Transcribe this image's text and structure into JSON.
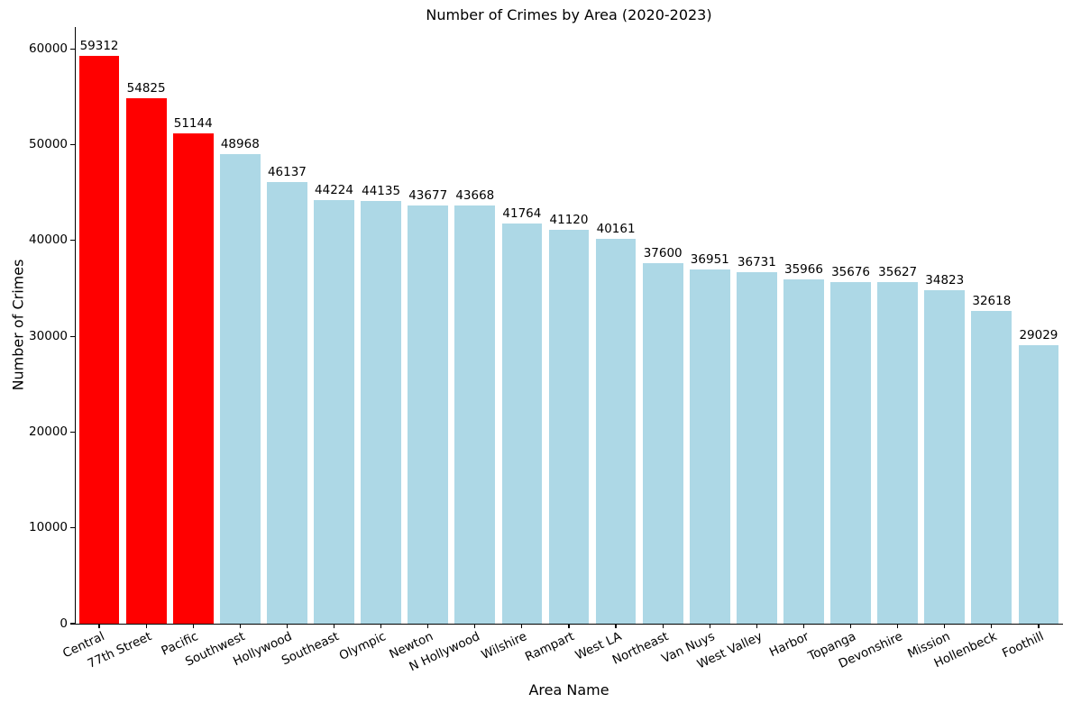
{
  "chart_data": {
    "type": "bar",
    "title": "Number of Crimes by Area (2020-2023)",
    "xlabel": "Area Name",
    "ylabel": "Number of Crimes",
    "categories": [
      "Central",
      "77th Street",
      "Pacific",
      "Southwest",
      "Hollywood",
      "Southeast",
      "Olympic",
      "Newton",
      "N Hollywood",
      "Wilshire",
      "Rampart",
      "West LA",
      "Northeast",
      "Van Nuys",
      "West Valley",
      "Harbor",
      "Topanga",
      "Devonshire",
      "Mission",
      "Hollenbeck",
      "Foothill"
    ],
    "values": [
      59312,
      54825,
      51144,
      48968,
      46137,
      44224,
      44135,
      43677,
      43668,
      41764,
      41120,
      40161,
      37600,
      36951,
      36731,
      35966,
      35676,
      35627,
      34823,
      32618,
      29029
    ],
    "bar_colors": [
      "#ff0000",
      "#ff0000",
      "#ff0000",
      "#add8e6",
      "#add8e6",
      "#add8e6",
      "#add8e6",
      "#add8e6",
      "#add8e6",
      "#add8e6",
      "#add8e6",
      "#add8e6",
      "#add8e6",
      "#add8e6",
      "#add8e6",
      "#add8e6",
      "#add8e6",
      "#add8e6",
      "#add8e6",
      "#add8e6",
      "#add8e6"
    ],
    "highlight_color": "#ff0000",
    "base_color": "#add8e6",
    "text_color": "#000000",
    "background_color": "#ffffff",
    "ylim": [
      0,
      62278
    ],
    "yticks": [
      0,
      10000,
      20000,
      30000,
      40000,
      50000,
      60000
    ],
    "grid": false,
    "legend": "none",
    "value_labels_shown": true,
    "x_tick_rotation_deg": 25
  }
}
